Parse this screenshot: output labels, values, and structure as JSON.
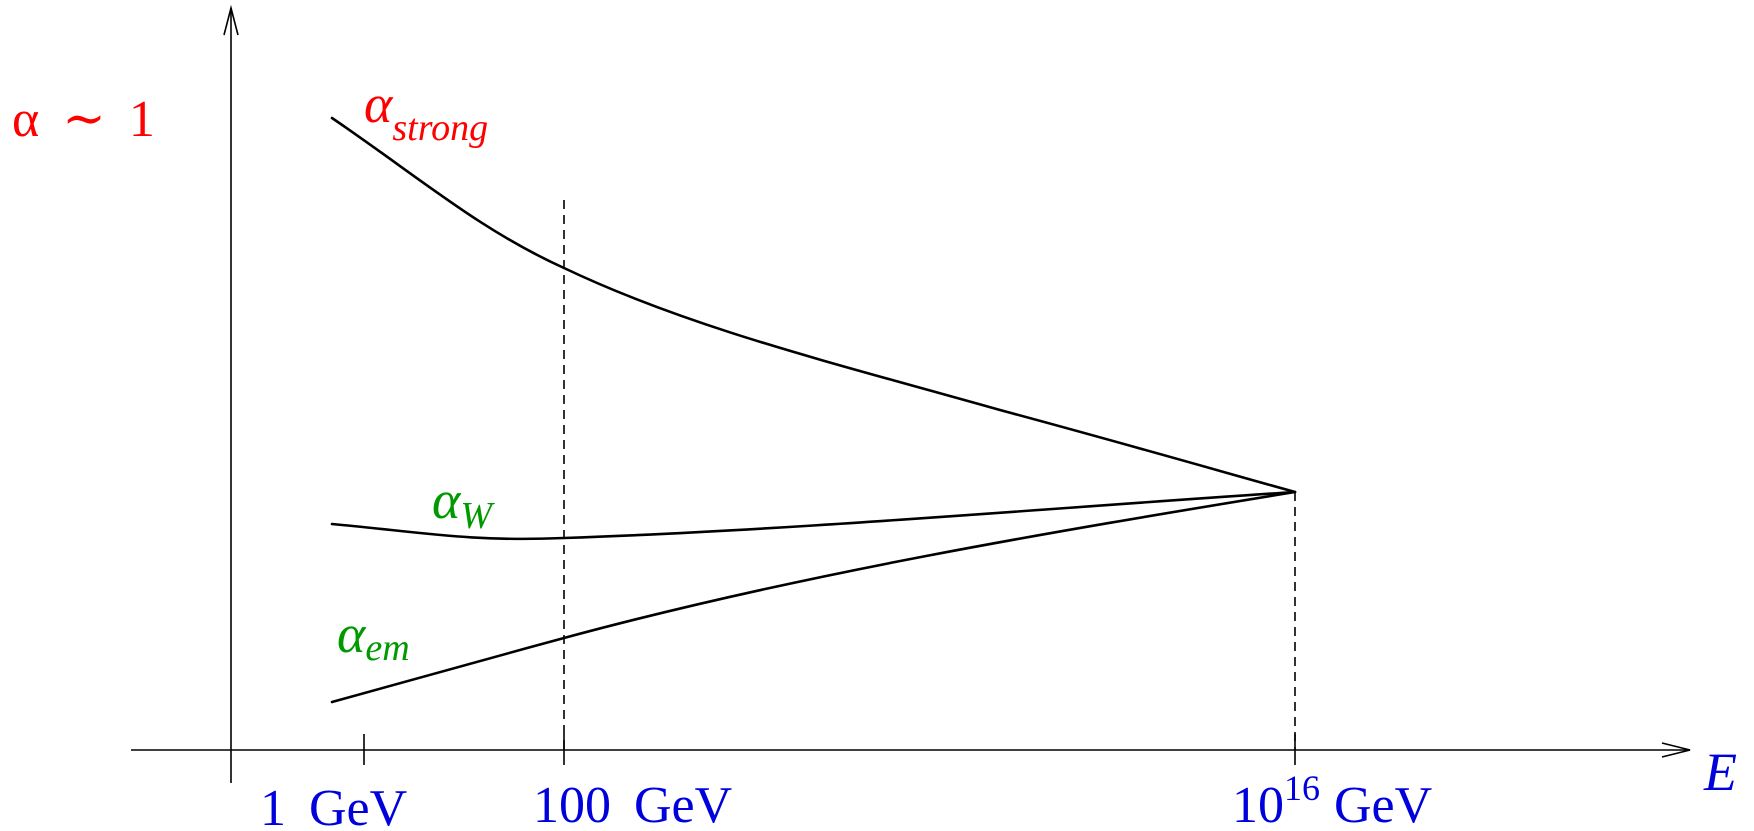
{
  "y_label": {
    "symbol": "α",
    "relation": "∼",
    "value": "1"
  },
  "couplings": {
    "strong": {
      "symbol": "α",
      "subscript": "strong"
    },
    "weak": {
      "symbol": "α",
      "subscript": "W"
    },
    "em": {
      "symbol": "α",
      "subscript": "em"
    }
  },
  "x_axis": {
    "label": "E",
    "ticks": [
      {
        "mantissa": "1",
        "exponent": "",
        "unit": "GeV"
      },
      {
        "mantissa": "100",
        "exponent": "",
        "unit": "GeV"
      },
      {
        "mantissa": "10",
        "exponent": "16",
        "unit": "GeV"
      }
    ]
  },
  "colors": {
    "y_label": "#ff0000",
    "strong": "#ff0000",
    "weak": "#009900",
    "em": "#009900",
    "x_axis": "#0000dd",
    "lines": "#000000"
  }
}
